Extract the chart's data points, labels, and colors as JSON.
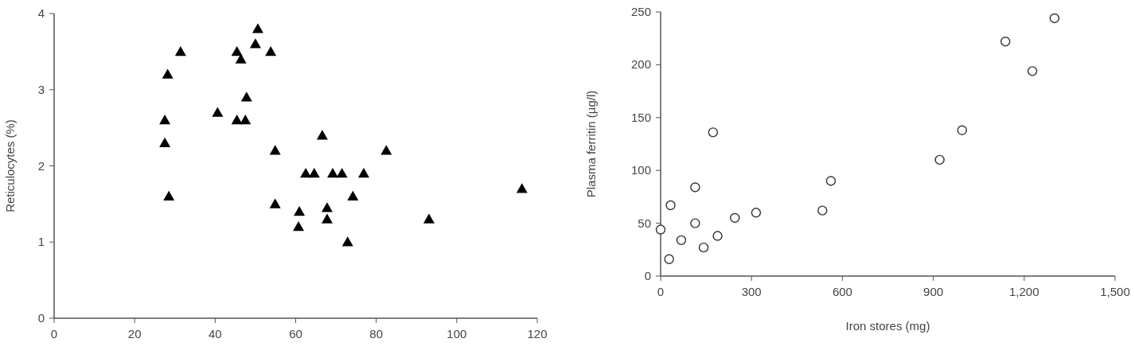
{
  "chart_data": [
    {
      "type": "scatter",
      "ylabel": "Reticulocytes (%)",
      "xlim": [
        0,
        120
      ],
      "ylim": [
        0,
        4
      ],
      "xticks": [
        0,
        20,
        40,
        60,
        80,
        100,
        120
      ],
      "yticks": [
        0,
        1,
        2,
        3,
        4
      ],
      "marker": "triangle",
      "series": [
        {
          "color": "#000000",
          "x": [
            27.5,
            27.5,
            28.2,
            28.5,
            31.4,
            40.6,
            45.4,
            46.4,
            45.4,
            47.5,
            47.8,
            50.0,
            50.6,
            53.8,
            54.9,
            54.9,
            66.6,
            82.5,
            62.5,
            64.6,
            69.2,
            71.5,
            76.9,
            74.2,
            60.9,
            67.8,
            60.7,
            67.8,
            72.9,
            93.1,
            116.2
          ],
          "values": [
            2.6,
            2.3,
            3.2,
            1.6,
            3.5,
            2.7,
            3.5,
            3.4,
            2.6,
            2.6,
            2.9,
            3.6,
            3.8,
            3.5,
            2.2,
            1.5,
            2.4,
            2.2,
            1.9,
            1.9,
            1.9,
            1.9,
            1.9,
            1.6,
            1.4,
            1.45,
            1.2,
            1.3,
            1.0,
            1.3,
            1.7
          ]
        }
      ]
    },
    {
      "type": "scatter",
      "xlabel": "Iron stores (mg)",
      "ylabel": "Plasma ferritin (µg/l)",
      "xlim": [
        0,
        1500
      ],
      "ylim": [
        0,
        250
      ],
      "xticks": [
        0,
        300,
        600,
        900,
        {
          "value": 1200,
          "label": "1,200"
        },
        {
          "value": 1500,
          "label": "1,500"
        }
      ],
      "yticks": [
        0,
        50,
        100,
        150,
        200,
        250
      ],
      "marker": "circle",
      "series": [
        {
          "color": "#333333",
          "x": [
            0,
            28,
            33,
            68,
            114,
            114,
            142,
            173,
            188,
            245,
            315,
            534,
            562,
            921,
            995,
            1138,
            1227,
            1300
          ],
          "values": [
            44,
            16,
            67,
            34,
            84,
            50,
            27,
            136,
            38,
            55,
            60,
            62,
            90,
            110,
            138,
            222,
            194,
            244
          ]
        }
      ]
    }
  ]
}
